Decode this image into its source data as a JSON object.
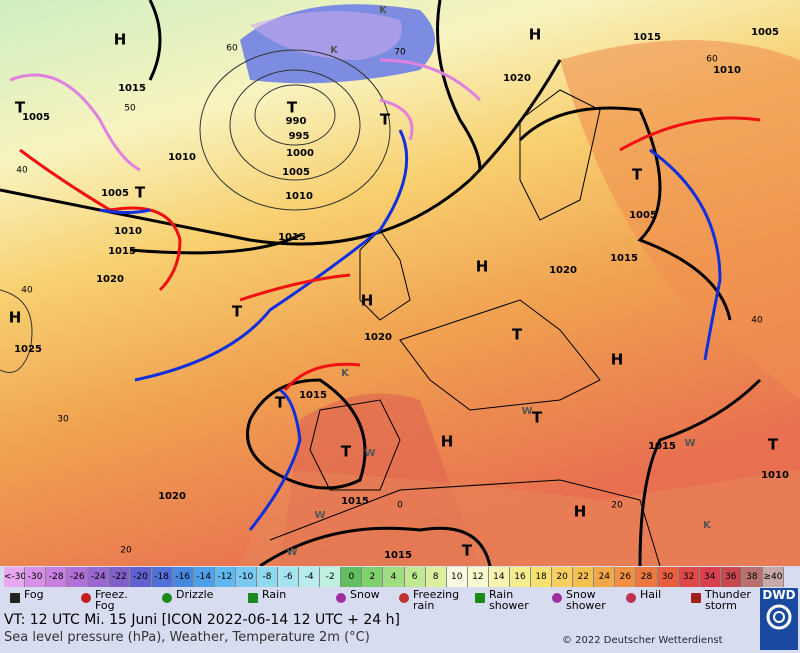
{
  "map": {
    "labels": [
      "H",
      "H",
      "T",
      "T",
      "T",
      "T",
      "H",
      "H",
      "T",
      "H",
      "T",
      "H",
      "T",
      "T",
      "H",
      "H",
      "T",
      "T",
      "T",
      "T",
      "K",
      "K",
      "K",
      "K",
      "W",
      "W",
      "W",
      "W",
      "W",
      "990",
      "995",
      "1000",
      "1005",
      "1010",
      "1010",
      "1015",
      "1005",
      "1005",
      "1010",
      "1015",
      "1020",
      "1025",
      "1015",
      "1020",
      "1015",
      "1005",
      "1010",
      "1005",
      "1015",
      "1020",
      "1020",
      "1015",
      "1015",
      "1015",
      "1020",
      "1015",
      "1010",
      "40",
      "40",
      "30",
      "20",
      "50",
      "60",
      "70",
      "0",
      "20",
      "40",
      "60"
    ]
  },
  "color_scale": {
    "labels": [
      "<-30",
      -30,
      -28,
      -26,
      -24,
      -22,
      -20,
      -18,
      -16,
      -14,
      -12,
      -10,
      -8,
      -6,
      -4,
      -2,
      0,
      2,
      4,
      6,
      8,
      10,
      12,
      14,
      16,
      18,
      20,
      22,
      24,
      26,
      28,
      30,
      32,
      34,
      36,
      38,
      "≥40 °C"
    ],
    "colors": [
      "#e8a8f0",
      "#d890e8",
      "#c880e0",
      "#b070d8",
      "#9868d0",
      "#8060c8",
      "#6060d0",
      "#5070d8",
      "#4888e0",
      "#50a0e8",
      "#60b8f0",
      "#78c8f0",
      "#90d8f0",
      "#a8e4f0",
      "#b8ecec",
      "#c0f0e0",
      "#60c060",
      "#80d070",
      "#a0dc80",
      "#c0e890",
      "#dcf0a0",
      "#fafae0",
      "#fafad0",
      "#f8f4b0",
      "#f8ec90",
      "#f8e070",
      "#f8d060",
      "#f4c050",
      "#f0a848",
      "#f09040",
      "#ec7840",
      "#e86040",
      "#e04848",
      "#d84050",
      "#c84850",
      "#b87070",
      "#c8a8a8"
    ]
  },
  "legend": [
    "Fog",
    "Freez. Fog",
    "Drizzle",
    "Rain",
    "Snow",
    "Freezing rain",
    "Rain shower",
    "Snow shower",
    "Hail",
    "Thunder storm"
  ],
  "footer": {
    "valid_time": "VT: 12 UTC Mi.  15 Juni [ICON 2022-06-14  12 UTC + 24 h]",
    "description": "Sea level pressure (hPa), Weather, Temperature 2m (°C)",
    "copyright": "© 2022 Deutscher Wetterdienst",
    "logo": "DWD"
  }
}
